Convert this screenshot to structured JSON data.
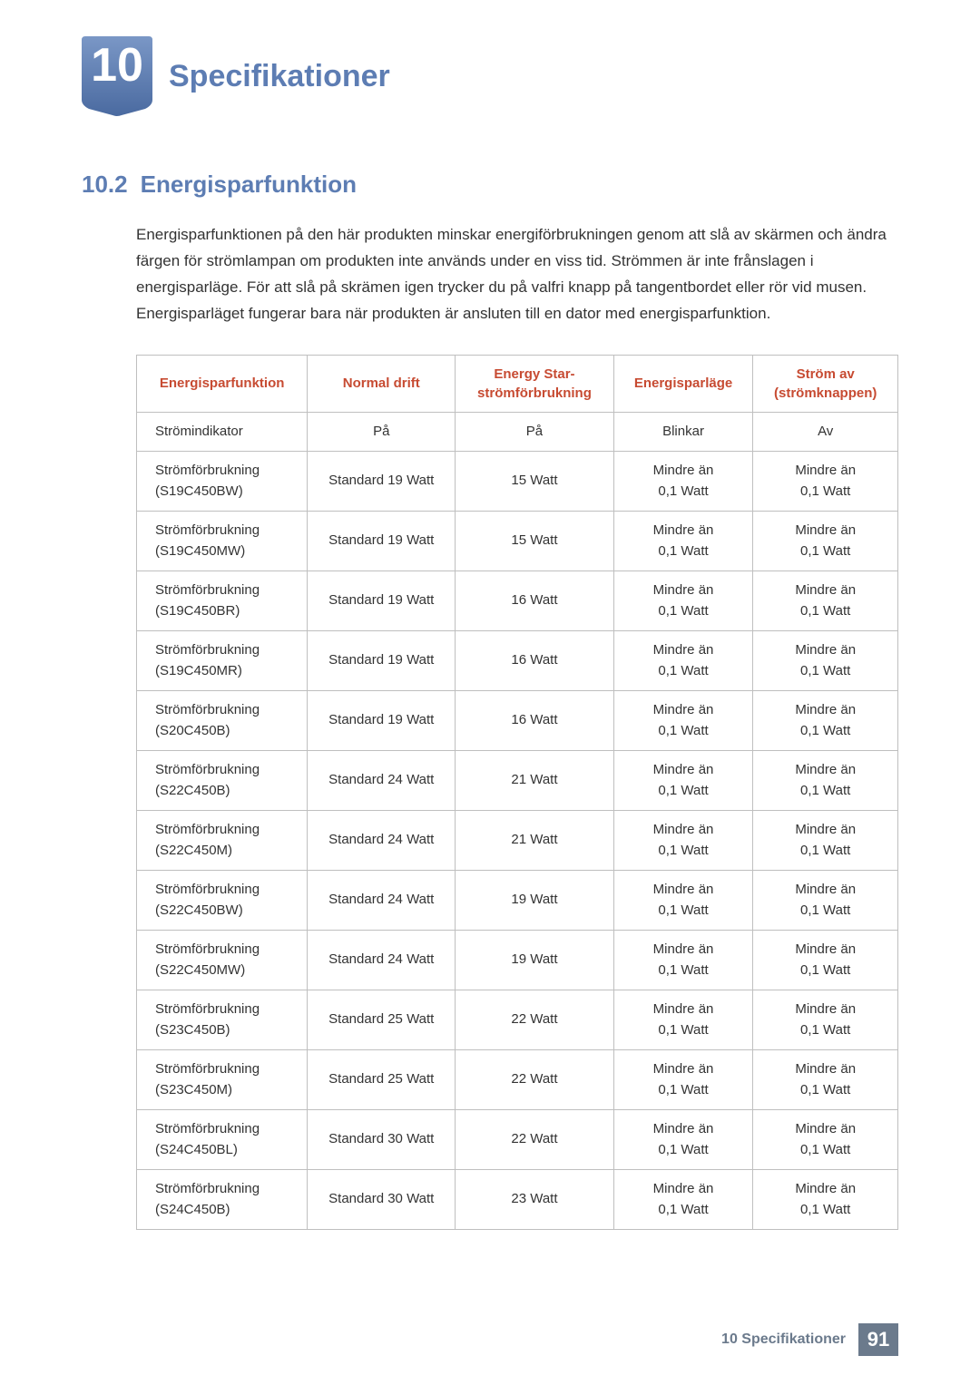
{
  "chapter": {
    "number": "10",
    "title": "Specifikationer",
    "badge_color": "#5d7db3"
  },
  "section": {
    "number": "10.2",
    "title": "Energisparfunktion"
  },
  "paragraph": "Energisparfunktionen på den här produkten minskar energiförbrukningen genom att slå av skärmen och ändra färgen för strömlampan om produkten inte används under en viss tid. Strömmen är inte frånslagen i energisparläge. För att slå på skrämen igen trycker du på valfri knapp på tangentbordet eller rör vid musen. Energisparläget fungerar bara när produkten är ansluten till en dator med energisparfunktion.",
  "table": {
    "columns": [
      "Energisparfunktion",
      "Normal drift",
      "Energy Star-\nströmförbrukning",
      "Energisparläge",
      "Ström av\n(strömknappen)"
    ],
    "rows": [
      [
        "Strömindikator",
        "På",
        "På",
        "Blinkar",
        "Av"
      ],
      [
        "Strömförbrukning\n(S19C450BW)",
        "Standard 19 Watt",
        "15 Watt",
        "Mindre än\n0,1 Watt",
        "Mindre än\n0,1 Watt"
      ],
      [
        "Strömförbrukning\n(S19C450MW)",
        "Standard 19 Watt",
        "15 Watt",
        "Mindre än\n0,1 Watt",
        "Mindre än\n0,1 Watt"
      ],
      [
        "Strömförbrukning\n(S19C450BR)",
        "Standard 19 Watt",
        "16 Watt",
        "Mindre än\n0,1 Watt",
        "Mindre än\n0,1 Watt"
      ],
      [
        "Strömförbrukning\n(S19C450MR)",
        "Standard 19 Watt",
        "16 Watt",
        "Mindre än\n0,1 Watt",
        "Mindre än\n0,1 Watt"
      ],
      [
        "Strömförbrukning\n(S20C450B)",
        "Standard 19 Watt",
        "16 Watt",
        "Mindre än\n0,1 Watt",
        "Mindre än\n0,1 Watt"
      ],
      [
        "Strömförbrukning\n(S22C450B)",
        "Standard 24 Watt",
        "21 Watt",
        "Mindre än\n0,1 Watt",
        "Mindre än\n0,1 Watt"
      ],
      [
        "Strömförbrukning\n(S22C450M)",
        "Standard 24 Watt",
        "21 Watt",
        "Mindre än\n0,1 Watt",
        "Mindre än\n0,1 Watt"
      ],
      [
        "Strömförbrukning\n(S22C450BW)",
        "Standard 24 Watt",
        "19 Watt",
        "Mindre än\n0,1 Watt",
        "Mindre än\n0,1 Watt"
      ],
      [
        "Strömförbrukning\n(S22C450MW)",
        "Standard 24 Watt",
        "19 Watt",
        "Mindre än\n0,1 Watt",
        "Mindre än\n0,1 Watt"
      ],
      [
        "Strömförbrukning\n(S23C450B)",
        "Standard 25 Watt",
        "22 Watt",
        "Mindre än\n0,1 Watt",
        "Mindre än\n0,1 Watt"
      ],
      [
        "Strömförbrukning\n(S23C450M)",
        "Standard 25 Watt",
        "22 Watt",
        "Mindre än\n0,1 Watt",
        "Mindre än\n0,1 Watt"
      ],
      [
        "Strömförbrukning\n(S24C450BL)",
        "Standard 30 Watt",
        "22 Watt",
        "Mindre än\n0,1 Watt",
        "Mindre än\n0,1 Watt"
      ],
      [
        "Strömförbrukning\n(S24C450B)",
        "Standard 30 Watt",
        "23 Watt",
        "Mindre än\n0,1 Watt",
        "Mindre än\n0,1 Watt"
      ]
    ],
    "header_color": "#c74b32",
    "border_color": "#bfbfbf"
  },
  "footer": {
    "chapter_label": "10 Specifikationer",
    "page_number": "91",
    "bg_color": "#6b7a8c"
  }
}
